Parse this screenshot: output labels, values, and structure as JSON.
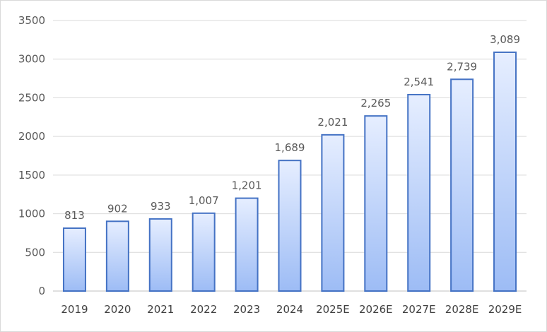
{
  "chart_data": {
    "type": "bar",
    "categories": [
      "2019",
      "2020",
      "2021",
      "2022",
      "2023",
      "2024",
      "2025E",
      "2026E",
      "2027E",
      "2028E",
      "2029E"
    ],
    "values": [
      813,
      902,
      933,
      1007,
      1201,
      1689,
      2021,
      2265,
      2541,
      2739,
      3089
    ],
    "data_labels": [
      "813",
      "902",
      "933",
      "1,007",
      "1,201",
      "1,689",
      "2,021",
      "2,265",
      "2,541",
      "2,739",
      "3,089"
    ],
    "yticks": [
      0,
      500,
      1000,
      1500,
      2000,
      2500,
      3000,
      3500
    ],
    "ytick_labels": [
      "0",
      "500",
      "1000",
      "1500",
      "2000",
      "2500",
      "3000",
      "3500"
    ],
    "ylim": [
      0,
      3500
    ],
    "grid": true,
    "legend": "none",
    "colors": {
      "bar_stroke": "#4472c4",
      "bar_fill_top": "#e6eeff",
      "bar_fill_bottom": "#9dbcf5"
    }
  }
}
